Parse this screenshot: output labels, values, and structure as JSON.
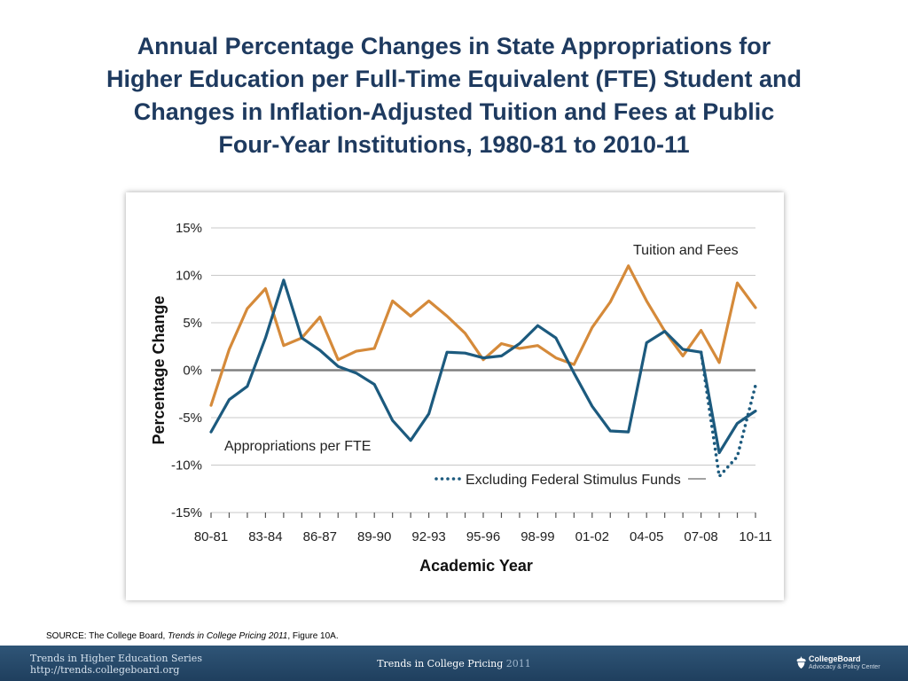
{
  "title": {
    "line1": "Annual Percentage Changes in State Appropriations for",
    "line2": "Higher Education per Full-Time Equivalent (FTE) Student and",
    "line3": "Changes in Inflation-Adjusted Tuition and Fees at Public",
    "line4": "Four-Year Institutions, 1980-81 to 2010-11"
  },
  "source": {
    "prefix": "SOURCE: The College Board, ",
    "italic": "Trends in College Pricing 2011",
    "suffix": ", Figure 10A."
  },
  "footer": {
    "series_line1": "Trends in Higher Education Series",
    "series_line2": "http://trends.collegeboard.org",
    "center_main": "Trends in College Pricing",
    "center_year": "2011",
    "logo_name": "CollegeBoard",
    "logo_sub": "Advocacy & Policy Center"
  },
  "colors": {
    "tuition": "#d58a3a",
    "appropriations": "#1c5a7e",
    "title": "#1e3a5f",
    "footer": "#2a4d6e"
  },
  "chart_data": {
    "type": "line",
    "xlabel": "Academic Year",
    "ylabel": "Percentage Change",
    "ylim": [
      -15,
      15
    ],
    "yticks": [
      15,
      10,
      5,
      0,
      -5,
      -10,
      -15
    ],
    "ytick_labels": [
      "15%",
      "10%",
      "5%",
      "0%",
      "-5%",
      "-10%",
      "-15%"
    ],
    "xtick_labels": [
      "80-81",
      "83-84",
      "86-87",
      "89-90",
      "92-93",
      "95-96",
      "98-99",
      "01-02",
      "04-05",
      "07-08",
      "10-11"
    ],
    "x": [
      "80-81",
      "81-82",
      "82-83",
      "83-84",
      "84-85",
      "85-86",
      "86-87",
      "87-88",
      "88-89",
      "89-90",
      "90-91",
      "91-92",
      "92-93",
      "93-94",
      "94-95",
      "95-96",
      "96-97",
      "97-98",
      "98-99",
      "99-00",
      "00-01",
      "01-02",
      "02-03",
      "03-04",
      "04-05",
      "05-06",
      "06-07",
      "07-08",
      "08-09",
      "09-10",
      "10-11"
    ],
    "grid": "horizontal",
    "series": [
      {
        "name": "Tuition and Fees",
        "values": [
          -3.7,
          2.2,
          6.5,
          8.6,
          2.6,
          3.4,
          5.6,
          1.1,
          2.0,
          2.3,
          7.3,
          5.7,
          7.3,
          5.7,
          3.9,
          1.1,
          2.8,
          2.3,
          2.6,
          1.3,
          0.6,
          4.5,
          7.2,
          11.0,
          7.3,
          4.1,
          1.5,
          4.2,
          0.8,
          9.2,
          6.6
        ]
      },
      {
        "name": "Appropriations per FTE",
        "values": [
          -6.5,
          -3.1,
          -1.7,
          3.4,
          9.5,
          3.4,
          2.1,
          0.4,
          -0.3,
          -1.5,
          -5.3,
          -7.4,
          -4.6,
          1.9,
          1.8,
          1.3,
          1.5,
          2.8,
          4.7,
          3.4,
          -0.3,
          -3.8,
          -6.4,
          -6.5,
          2.9,
          4.1,
          2.2,
          1.9,
          -8.7,
          -5.6,
          -4.3
        ]
      },
      {
        "name": "Excluding Federal Stimulus Funds",
        "style": "dotted",
        "x": [
          "07-08",
          "08-09",
          "09-10",
          "10-11"
        ],
        "values": [
          1.9,
          -11.2,
          -9.1,
          -1.6
        ]
      }
    ],
    "annotations": [
      "Tuition and Fees",
      "Appropriations per FTE",
      "Excluding Federal Stimulus Funds"
    ]
  }
}
